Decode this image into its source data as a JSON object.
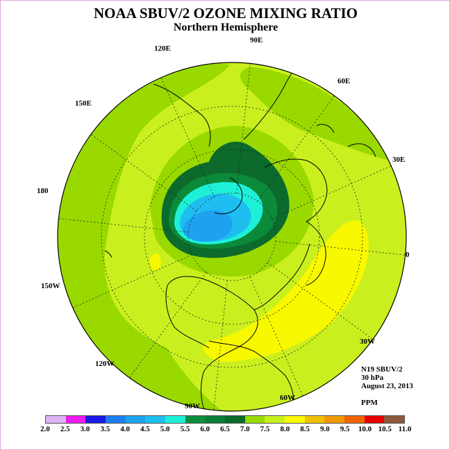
{
  "header": {
    "title": "NOAA SBUV/2 OZONE MIXING RATIO",
    "subtitle": "Northern Hemisphere"
  },
  "longitude_labels": [
    "90E",
    "60E",
    "30E",
    "0",
    "30W",
    "60W",
    "90W",
    "120W",
    "150W",
    "180",
    "150E",
    "120E"
  ],
  "info": {
    "instrument": "N19 SBUV/2",
    "level": "30 hPa",
    "date": "August 23, 2013",
    "units": "PPM"
  },
  "colorbar": {
    "ticks": [
      "2.0",
      "2.5",
      "3.0",
      "3.5",
      "4.0",
      "4.5",
      "5.0",
      "5.5",
      "6.0",
      "6.5",
      "7.0",
      "7.5",
      "8.0",
      "8.5",
      "9.0",
      "9.5",
      "10.0",
      "10.5",
      "11.0"
    ],
    "colors": [
      "#bf84f2",
      "#dcb5f4",
      "#ee1cee",
      "#1a1ae6",
      "#1e7ef0",
      "#1ea2f0",
      "#1ebef0",
      "#1ef0d8",
      "#0a8f3c",
      "#0b7d36",
      "#0a6a2a",
      "#99d900",
      "#c8f01e",
      "#f8f800",
      "#f0c000",
      "#f09a00",
      "#f06400",
      "#e60000",
      "#8b5a3c"
    ]
  },
  "map_colors": {
    "ocean_base": "#c9f01e",
    "green_75": "#99d900",
    "yellow_85": "#f8f800",
    "dark_green": "#0b6a2c",
    "medium_green": "#0b8a3a",
    "cyan_55": "#1ef0d8",
    "blue_50": "#1ebef0",
    "blue_45": "#1ea2f0"
  }
}
